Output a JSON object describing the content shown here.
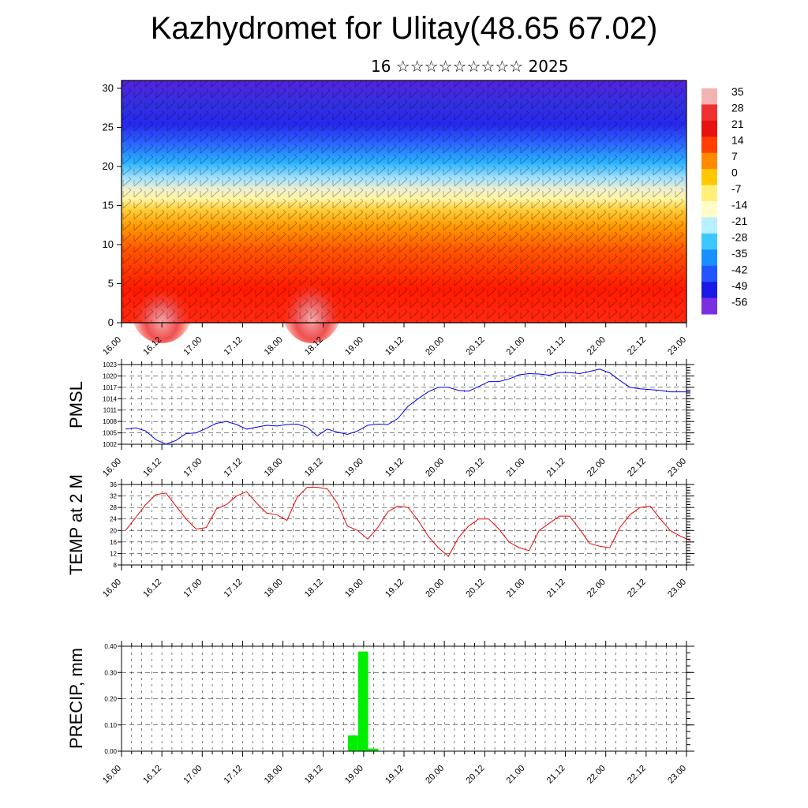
{
  "header": {
    "title": "Kazhydromet for Ulitay(48.65 67.02)",
    "subtitle": "16 ☆☆☆☆☆☆☆☆☆ 2025"
  },
  "x_labels": [
    "16.00",
    "16.12",
    "17.00",
    "17.12",
    "18.00",
    "18.12",
    "19.00",
    "19.12",
    "20.00",
    "20.12",
    "21.00",
    "21.12",
    "22.00",
    "22.12",
    "23.00"
  ],
  "chart_data": [
    {
      "type": "heatmap",
      "title": "",
      "ylabel": "",
      "ylim": [
        0,
        31
      ],
      "yticks": [
        0,
        5,
        10,
        15,
        20,
        25,
        30
      ],
      "colorbar": {
        "labels": [
          "35",
          "28",
          "21",
          "14",
          "7",
          "0",
          "-7",
          "-14",
          "-21",
          "-28",
          "-35",
          "-42",
          "-49",
          "-56"
        ],
        "colors": [
          "#f4b3b3",
          "#ef3030",
          "#e81010",
          "#ff4000",
          "#ff8a00",
          "#ffc800",
          "#fff07a",
          "#fffcc8",
          "#b8f0ff",
          "#3cc8ff",
          "#1a90ff",
          "#2255ff",
          "#1a1ae6",
          "#7a30e0"
        ]
      }
    },
    {
      "type": "line",
      "ylabel": "PMSL",
      "ylim": [
        1002,
        1023
      ],
      "yticks": [
        1002,
        1005,
        1008,
        1011,
        1014,
        1017,
        1020,
        1023
      ],
      "color": "#0000ee",
      "x": [
        0,
        1,
        2,
        3,
        4,
        5,
        6,
        7,
        8,
        9,
        10,
        11,
        12,
        13,
        14,
        15,
        16,
        17,
        18,
        19,
        20,
        21,
        22,
        23,
        24,
        25,
        26,
        27,
        28,
        29,
        30,
        31,
        32,
        33,
        34,
        35,
        36,
        37,
        38,
        39,
        40,
        41,
        42,
        43,
        44,
        45,
        46,
        47,
        48,
        49,
        50,
        51,
        52,
        53,
        54,
        55,
        56
      ],
      "values": [
        1006,
        1006.3,
        1005.5,
        1003.2,
        1002,
        1003,
        1004.8,
        1005,
        1006.2,
        1007.5,
        1008,
        1007.2,
        1006,
        1006.5,
        1007,
        1006.8,
        1007.2,
        1007.3,
        1006.5,
        1004.2,
        1006,
        1005.2,
        1004.6,
        1005.5,
        1007,
        1007.3,
        1007.2,
        1008.8,
        1012,
        1014,
        1015.8,
        1017,
        1017,
        1016.2,
        1016,
        1017.2,
        1018.5,
        1018.5,
        1019.2,
        1020.3,
        1020.6,
        1020.5,
        1020.2,
        1020.9,
        1020.9,
        1020.6,
        1021.2,
        1021.8,
        1020.8,
        1018.8,
        1017,
        1016.6,
        1016.4,
        1016.2,
        1015.8,
        1015.8,
        1015.8
      ]
    },
    {
      "type": "line",
      "ylabel": "TEMP at 2 M",
      "ylim": [
        8,
        36
      ],
      "yticks": [
        8,
        12,
        16,
        20,
        24,
        28,
        32,
        36
      ],
      "color": "#ee0000",
      "x": [
        0,
        1,
        2,
        3,
        4,
        5,
        6,
        7,
        8,
        9,
        10,
        11,
        12,
        13,
        14,
        15,
        16,
        17,
        18,
        19,
        20,
        21,
        22,
        23,
        24,
        25,
        26,
        27,
        28,
        29,
        30,
        31,
        32,
        33,
        34,
        35,
        36,
        37,
        38,
        39,
        40,
        41,
        42,
        43,
        44,
        45,
        46,
        47,
        48,
        49,
        50,
        51,
        52,
        53,
        54,
        55,
        56
      ],
      "values": [
        20,
        24.5,
        29,
        32.5,
        33,
        28.5,
        24,
        20.5,
        21,
        27.5,
        29,
        32,
        33.5,
        29.5,
        26,
        25.5,
        23.5,
        31.5,
        35,
        35,
        34.5,
        29.5,
        21.5,
        20,
        17,
        21,
        26.5,
        28.5,
        28,
        23.5,
        18,
        14,
        11,
        17.5,
        21.5,
        24,
        24,
        20.5,
        16,
        14,
        13,
        20,
        22.5,
        25,
        25,
        20.5,
        15.5,
        14.5,
        14,
        21,
        25.5,
        28,
        28.5,
        24,
        20,
        18,
        16.5
      ]
    },
    {
      "type": "bar",
      "ylabel": "PRECIP, mm",
      "ylim": [
        0,
        0.4
      ],
      "yticks": [
        "0.00",
        "0.10",
        "0.20",
        "0.30",
        "0.40"
      ],
      "color": "#00ee00",
      "x": [
        22,
        23,
        24
      ],
      "values": [
        0.06,
        0.38,
        0.01
      ]
    }
  ]
}
